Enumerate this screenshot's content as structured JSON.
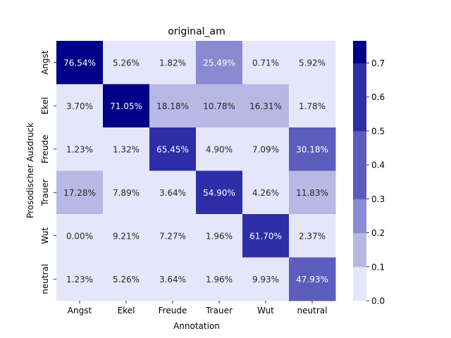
{
  "chart_data": {
    "type": "heatmap",
    "title": "original_am",
    "xlabel": "Annotation",
    "ylabel": "Prosodischer Ausdruck",
    "x_categories": [
      "Angst",
      "Ekel",
      "Freude",
      "Trauer",
      "Wut",
      "neutral"
    ],
    "y_categories": [
      "Angst",
      "Ekel",
      "Freude",
      "Trauer",
      "Wut",
      "neutral"
    ],
    "values": [
      [
        0.7654,
        0.0526,
        0.0182,
        0.2549,
        0.0071,
        0.0592
      ],
      [
        0.037,
        0.7105,
        0.1818,
        0.1078,
        0.1631,
        0.0178
      ],
      [
        0.0123,
        0.0132,
        0.6545,
        0.049,
        0.0709,
        0.3018
      ],
      [
        0.1728,
        0.0789,
        0.0364,
        0.549,
        0.0426,
        0.1183
      ],
      [
        0.0,
        0.0921,
        0.0727,
        0.0196,
        0.617,
        0.0237
      ],
      [
        0.0123,
        0.0526,
        0.0364,
        0.0196,
        0.0993,
        0.4793
      ]
    ],
    "cell_labels": [
      [
        "76.54%",
        "5.26%",
        "1.82%",
        "25.49%",
        "0.71%",
        "5.92%"
      ],
      [
        "3.70%",
        "71.05%",
        "18.18%",
        "10.78%",
        "16.31%",
        "1.78%"
      ],
      [
        "1.23%",
        "1.32%",
        "65.45%",
        "4.90%",
        "7.09%",
        "30.18%"
      ],
      [
        "17.28%",
        "7.89%",
        "3.64%",
        "54.90%",
        "4.26%",
        "11.83%"
      ],
      [
        "0.00%",
        "9.21%",
        "7.27%",
        "1.96%",
        "61.70%",
        "2.37%"
      ],
      [
        "1.23%",
        "5.26%",
        "3.64%",
        "1.96%",
        "9.93%",
        "47.93%"
      ]
    ],
    "colorbar": {
      "range": [
        0.0,
        0.7654
      ],
      "ticks": [
        "0.0",
        "0.1",
        "0.2",
        "0.3",
        "0.4",
        "0.5",
        "0.6",
        "0.7"
      ],
      "bins": [
        {
          "from": 0.0,
          "to": 0.1,
          "color": "#e6e6fa"
        },
        {
          "from": 0.1,
          "to": 0.2,
          "color": "#b8b8e5"
        },
        {
          "from": 0.2,
          "to": 0.3,
          "color": "#8a8ad1"
        },
        {
          "from": 0.3,
          "to": 0.4,
          "color": "#5c5cbd"
        },
        {
          "from": 0.4,
          "to": 0.5,
          "color": "#5c5cbd"
        },
        {
          "from": 0.5,
          "to": 0.6,
          "color": "#2e2ea8"
        },
        {
          "from": 0.6,
          "to": 0.7,
          "color": "#2e2ea8"
        },
        {
          "from": 0.7,
          "to": 0.7654,
          "color": "#000088"
        }
      ]
    },
    "text_colors": {
      "dark": "#262626",
      "light": "#ffffff"
    }
  }
}
